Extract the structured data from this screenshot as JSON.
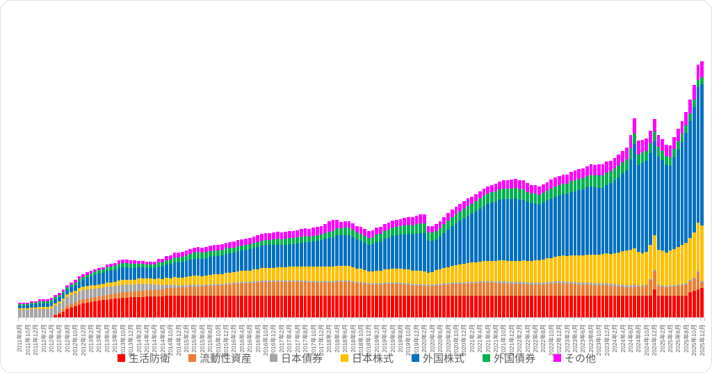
{
  "chart_data": {
    "type": "bar",
    "stacked": true,
    "title": "",
    "xlabel": "",
    "ylabel": "",
    "y_axis_shown": false,
    "grid": false,
    "legend_position": "bottom",
    "months_count": 173,
    "x_start": "2011年8月",
    "x_end": "2025年12月",
    "x_label_step_months": 2,
    "x_labels": [
      "2011年8月",
      "2011年10月",
      "2011年12月",
      "2012年2月",
      "2012年4月",
      "2012年6月",
      "2012年8月",
      "2012年10月",
      "2012年12月",
      "2013年2月",
      "2013年4月",
      "2013年6月",
      "2013年8月",
      "2013年10月",
      "2013年12月",
      "2014年2月",
      "2014年4月",
      "2014年6月",
      "2014年8月",
      "2014年10月",
      "2014年12月",
      "2015年2月",
      "2015年4月",
      "2015年6月",
      "2015年8月",
      "2015年10月",
      "2015年12月",
      "2016年2月",
      "2016年4月",
      "2016年6月",
      "2016年8月",
      "2016年10月",
      "2016年12月",
      "2017年2月",
      "2017年4月",
      "2017年6月",
      "2017年8月",
      "2017年10月",
      "2017年12月",
      "2018年2月",
      "2018年4月",
      "2018年6月",
      "2018年8月",
      "2018年10月",
      "2018年12月",
      "2019年2月",
      "2019年4月",
      "2019年6月",
      "2019年8月",
      "2019年10月",
      "2019年12月",
      "2020年2月",
      "2020年4月",
      "2020年6月",
      "2020年8月",
      "2020年10月",
      "2020年12月",
      "2021年2月",
      "2021年4月",
      "2021年6月",
      "2021年8月",
      "2021年10月",
      "2021年12月",
      "2022年2月",
      "2022年4月",
      "2022年6月",
      "2022年8月",
      "2022年10月",
      "2022年12月",
      "2023年2月",
      "2023年4月",
      "2023年6月",
      "2023年8月",
      "2023年10月",
      "2023年12月",
      "2024年2月",
      "2024年4月",
      "2024年6月",
      "2024年8月",
      "2024年10月",
      "2024年12月",
      "2025年2月",
      "2025年4月",
      "2025年6月",
      "2025年8月",
      "2025年10月",
      "2025年12月"
    ],
    "series": [
      {
        "name": "生活防衛",
        "color": "#FF0000",
        "values": [
          0,
          0,
          0,
          0,
          0,
          0,
          0,
          0,
          0,
          3,
          5,
          8,
          12,
          14,
          16,
          18,
          20,
          21,
          22,
          23,
          24,
          25,
          25,
          26,
          27,
          27,
          28,
          28,
          29,
          29,
          29,
          29,
          30,
          30,
          30,
          30,
          30,
          31,
          31,
          31,
          31,
          31,
          31,
          31,
          31,
          31,
          31,
          31,
          31,
          31,
          31,
          31,
          31,
          31,
          31,
          31,
          31,
          31,
          31,
          31,
          31,
          31,
          31,
          31,
          31,
          31,
          31,
          31,
          31,
          31,
          31,
          31,
          31,
          31,
          31,
          31,
          31,
          31,
          31,
          31,
          31,
          31,
          31,
          31,
          31,
          31,
          31,
          31,
          31,
          31,
          31,
          31,
          31,
          31,
          31,
          31,
          31,
          31,
          31,
          31,
          31,
          31,
          31,
          31,
          31,
          31,
          31,
          31,
          31,
          31,
          31,
          31,
          31,
          31,
          31,
          31,
          31,
          31,
          31,
          31,
          31,
          31,
          31,
          31,
          31,
          31,
          31,
          31,
          31,
          31,
          31,
          31,
          31,
          31,
          31,
          31,
          31,
          31,
          31,
          31,
          31,
          31,
          31,
          31,
          31,
          31,
          31,
          31,
          31,
          31,
          31,
          31,
          31,
          31,
          31,
          31,
          31,
          31,
          31,
          31,
          40,
          31,
          31,
          31,
          31,
          31,
          31,
          31,
          31,
          36,
          38,
          40,
          42
        ]
      },
      {
        "name": "流動性資産",
        "color": "#ED7D31",
        "values": [
          0,
          0,
          0,
          0,
          0,
          0,
          0,
          0,
          0,
          1,
          2,
          3,
          4,
          5,
          5,
          6,
          6,
          6,
          6,
          6,
          6,
          6,
          7,
          7,
          7,
          8,
          8,
          8,
          8,
          8,
          9,
          9,
          9,
          9,
          9,
          10,
          10,
          11,
          11,
          12,
          12,
          12,
          12,
          13,
          13,
          13,
          13,
          14,
          14,
          15,
          15,
          15,
          16,
          16,
          17,
          17,
          18,
          18,
          18,
          19,
          19,
          20,
          20,
          20,
          20,
          20,
          20,
          20,
          20,
          20,
          20,
          20,
          20,
          19,
          19,
          19,
          19,
          19,
          19,
          19,
          20,
          20,
          20,
          20,
          19,
          18,
          18,
          17,
          16,
          16,
          16,
          16,
          17,
          17,
          17,
          17,
          17,
          16,
          16,
          15,
          15,
          15,
          14,
          14,
          14,
          15,
          15,
          16,
          16,
          17,
          17,
          17,
          17,
          18,
          18,
          18,
          19,
          19,
          19,
          19,
          18,
          18,
          18,
          17,
          17,
          17,
          17,
          17,
          16,
          16,
          16,
          16,
          16,
          17,
          17,
          18,
          18,
          18,
          17,
          17,
          17,
          16,
          16,
          16,
          16,
          15,
          15,
          15,
          15,
          14,
          14,
          13,
          13,
          12,
          12,
          13,
          13,
          13,
          14,
          22,
          26,
          14,
          13,
          12,
          13,
          13,
          14,
          15,
          16,
          16,
          17,
          24,
          8
        ]
      },
      {
        "name": "日本債券",
        "color": "#A5A5A5",
        "values": [
          11,
          11,
          11,
          12,
          12,
          12,
          12,
          12,
          13,
          13,
          13,
          13,
          13,
          13,
          13,
          13,
          13,
          13,
          13,
          12,
          12,
          12,
          12,
          11,
          11,
          11,
          11,
          11,
          10,
          10,
          10,
          10,
          9,
          9,
          8,
          7,
          6,
          5,
          4,
          4,
          3,
          3,
          3,
          3,
          3,
          3,
          2,
          2,
          2,
          2,
          2,
          2,
          2,
          2,
          2,
          2,
          2,
          2,
          2,
          2,
          2,
          2,
          2,
          2,
          2,
          2,
          2,
          2,
          2,
          2,
          2,
          2,
          2,
          2,
          2,
          2,
          2,
          2,
          2,
          2,
          2,
          2,
          2,
          2,
          2,
          2,
          2,
          2,
          2,
          2,
          2,
          2,
          2,
          2,
          2,
          2,
          2,
          2,
          2,
          2,
          2,
          2,
          2,
          2,
          2,
          2,
          2,
          2,
          2,
          2,
          2,
          2,
          2,
          2,
          2,
          2,
          2,
          2,
          2,
          2,
          2,
          3,
          3,
          3,
          3,
          3,
          3,
          3,
          3,
          3,
          3,
          3,
          3,
          3,
          3,
          3,
          3,
          3,
          3,
          3,
          3,
          3,
          3,
          3,
          3,
          3,
          3,
          3,
          3,
          3,
          3,
          3,
          3,
          3,
          3,
          3,
          2,
          2,
          2,
          2,
          2,
          2,
          2,
          2,
          2,
          2,
          2,
          2,
          2,
          2,
          2,
          2,
          2
        ]
      },
      {
        "name": "日本株式",
        "color": "#FFC000",
        "values": [
          2,
          2,
          2,
          2,
          2,
          3,
          3,
          3,
          3,
          3,
          3,
          3,
          4,
          4,
          4,
          5,
          5,
          5,
          5,
          5,
          5,
          5,
          6,
          6,
          6,
          7,
          7,
          7,
          7,
          7,
          8,
          8,
          8,
          8,
          8,
          9,
          9,
          10,
          10,
          11,
          11,
          11,
          12,
          12,
          13,
          13,
          13,
          13,
          14,
          14,
          14,
          14,
          15,
          15,
          15,
          16,
          16,
          16,
          16,
          17,
          17,
          18,
          18,
          18,
          18,
          19,
          19,
          19,
          20,
          20,
          20,
          20,
          20,
          21,
          21,
          21,
          21,
          21,
          21,
          21,
          21,
          21,
          21,
          21,
          20,
          19,
          19,
          18,
          17,
          17,
          18,
          18,
          19,
          19,
          20,
          20,
          20,
          20,
          20,
          19,
          19,
          19,
          19,
          17,
          18,
          20,
          21,
          22,
          23,
          24,
          25,
          26,
          27,
          27,
          28,
          28,
          28,
          29,
          29,
          29,
          30,
          30,
          30,
          30,
          30,
          30,
          30,
          31,
          31,
          31,
          32,
          32,
          33,
          34,
          34,
          35,
          36,
          37,
          37,
          38,
          38,
          39,
          39,
          40,
          40,
          41,
          41,
          42,
          43,
          43,
          44,
          46,
          48,
          50,
          51,
          52,
          48,
          46,
          47,
          49,
          50,
          50,
          50,
          48,
          50,
          52,
          54,
          56,
          58,
          60,
          65,
          70,
          80
        ]
      },
      {
        "name": "外国株式",
        "color": "#0070C0",
        "values": [
          4,
          4,
          4,
          5,
          5,
          5,
          5,
          5,
          6,
          6,
          6,
          7,
          7,
          8,
          8,
          9,
          10,
          12,
          13,
          15,
          16,
          16,
          17,
          17,
          17,
          18,
          18,
          18,
          17,
          17,
          16,
          16,
          15,
          15,
          16,
          17,
          18,
          19,
          20,
          21,
          22,
          23,
          23,
          24,
          24,
          25,
          25,
          25,
          26,
          26,
          26,
          27,
          27,
          28,
          28,
          29,
          29,
          30,
          31,
          31,
          32,
          32,
          33,
          33,
          33,
          33,
          32,
          32,
          32,
          32,
          33,
          34,
          35,
          35,
          36,
          37,
          38,
          40,
          41,
          42,
          44,
          44,
          44,
          44,
          43,
          42,
          40,
          39,
          38,
          39,
          41,
          42,
          44,
          45,
          47,
          48,
          49,
          50,
          51,
          52,
          53,
          54,
          55,
          46,
          45,
          44,
          47,
          50,
          54,
          57,
          60,
          63,
          65,
          68,
          70,
          73,
          76,
          79,
          82,
          84,
          85,
          87,
          88,
          89,
          89,
          90,
          88,
          87,
          85,
          83,
          82,
          80,
          82,
          83,
          85,
          86,
          87,
          88,
          89,
          91,
          92,
          94,
          95,
          97,
          98,
          97,
          96,
          95,
          98,
          102,
          105,
          108,
          112,
          115,
          130,
          150,
          125,
          130,
          131,
          132,
          135,
          134,
          130,
          126,
          122,
          132,
          140,
          148,
          158,
          168,
          180,
          195,
          203
        ]
      },
      {
        "name": "外国債券",
        "color": "#00B050",
        "values": [
          2,
          2,
          2,
          2,
          2,
          3,
          3,
          3,
          3,
          3,
          3,
          3,
          3,
          3,
          4,
          4,
          4,
          4,
          4,
          5,
          5,
          5,
          5,
          6,
          6,
          6,
          6,
          6,
          6,
          6,
          5,
          5,
          5,
          5,
          5,
          6,
          6,
          6,
          7,
          7,
          7,
          7,
          8,
          8,
          9,
          9,
          9,
          9,
          8,
          8,
          8,
          8,
          8,
          8,
          7,
          7,
          7,
          7,
          7,
          7,
          7,
          7,
          7,
          7,
          8,
          8,
          8,
          9,
          9,
          9,
          9,
          9,
          9,
          8,
          8,
          8,
          8,
          8,
          9,
          9,
          10,
          10,
          11,
          11,
          11,
          10,
          10,
          10,
          10,
          10,
          11,
          11,
          11,
          12,
          12,
          12,
          12,
          13,
          13,
          13,
          14,
          14,
          14,
          12,
          12,
          12,
          12,
          13,
          13,
          13,
          13,
          13,
          14,
          14,
          14,
          15,
          15,
          15,
          15,
          15,
          15,
          15,
          15,
          15,
          15,
          15,
          15,
          15,
          14,
          14,
          14,
          14,
          14,
          14,
          15,
          15,
          15,
          15,
          15,
          16,
          16,
          16,
          16,
          16,
          17,
          17,
          18,
          18,
          18,
          17,
          17,
          17,
          16,
          16,
          16,
          15,
          15,
          15,
          14,
          14,
          14,
          14,
          13,
          13,
          12,
          12,
          12,
          12,
          11,
          11,
          11,
          10,
          10
        ]
      },
      {
        "name": "その他",
        "color": "#FF00FF",
        "values": [
          2,
          2,
          2,
          2,
          2,
          3,
          3,
          3,
          3,
          3,
          3,
          3,
          3,
          3,
          4,
          4,
          4,
          4,
          4,
          3,
          3,
          3,
          4,
          4,
          4,
          5,
          5,
          5,
          5,
          5,
          4,
          4,
          4,
          4,
          4,
          5,
          5,
          6,
          6,
          7,
          7,
          7,
          7,
          7,
          7,
          7,
          7,
          7,
          8,
          8,
          8,
          8,
          8,
          8,
          9,
          9,
          9,
          9,
          9,
          9,
          10,
          10,
          10,
          10,
          10,
          10,
          10,
          10,
          10,
          10,
          10,
          11,
          11,
          11,
          12,
          12,
          12,
          13,
          15,
          16,
          12,
          9,
          9,
          9,
          9,
          9,
          10,
          10,
          10,
          10,
          10,
          10,
          10,
          10,
          10,
          10,
          10,
          11,
          11,
          12,
          12,
          13,
          13,
          9,
          9,
          10,
          10,
          10,
          11,
          11,
          11,
          11,
          11,
          11,
          10,
          10,
          10,
          10,
          10,
          10,
          11,
          11,
          12,
          12,
          13,
          13,
          13,
          13,
          13,
          12,
          12,
          12,
          12,
          12,
          13,
          13,
          13,
          13,
          13,
          13,
          14,
          14,
          14,
          14,
          15,
          15,
          16,
          16,
          16,
          15,
          15,
          16,
          16,
          17,
          19,
          22,
          20,
          18,
          18,
          18,
          18,
          17,
          17,
          16,
          17,
          17,
          18,
          18,
          19,
          20,
          21,
          22,
          23
        ]
      }
    ],
    "colors": {
      "axis_line": "#d9d9d9",
      "tick": "#bfbfbf",
      "label_text": "#595959",
      "legend_text": "#595959",
      "background": "#ffffff"
    }
  }
}
